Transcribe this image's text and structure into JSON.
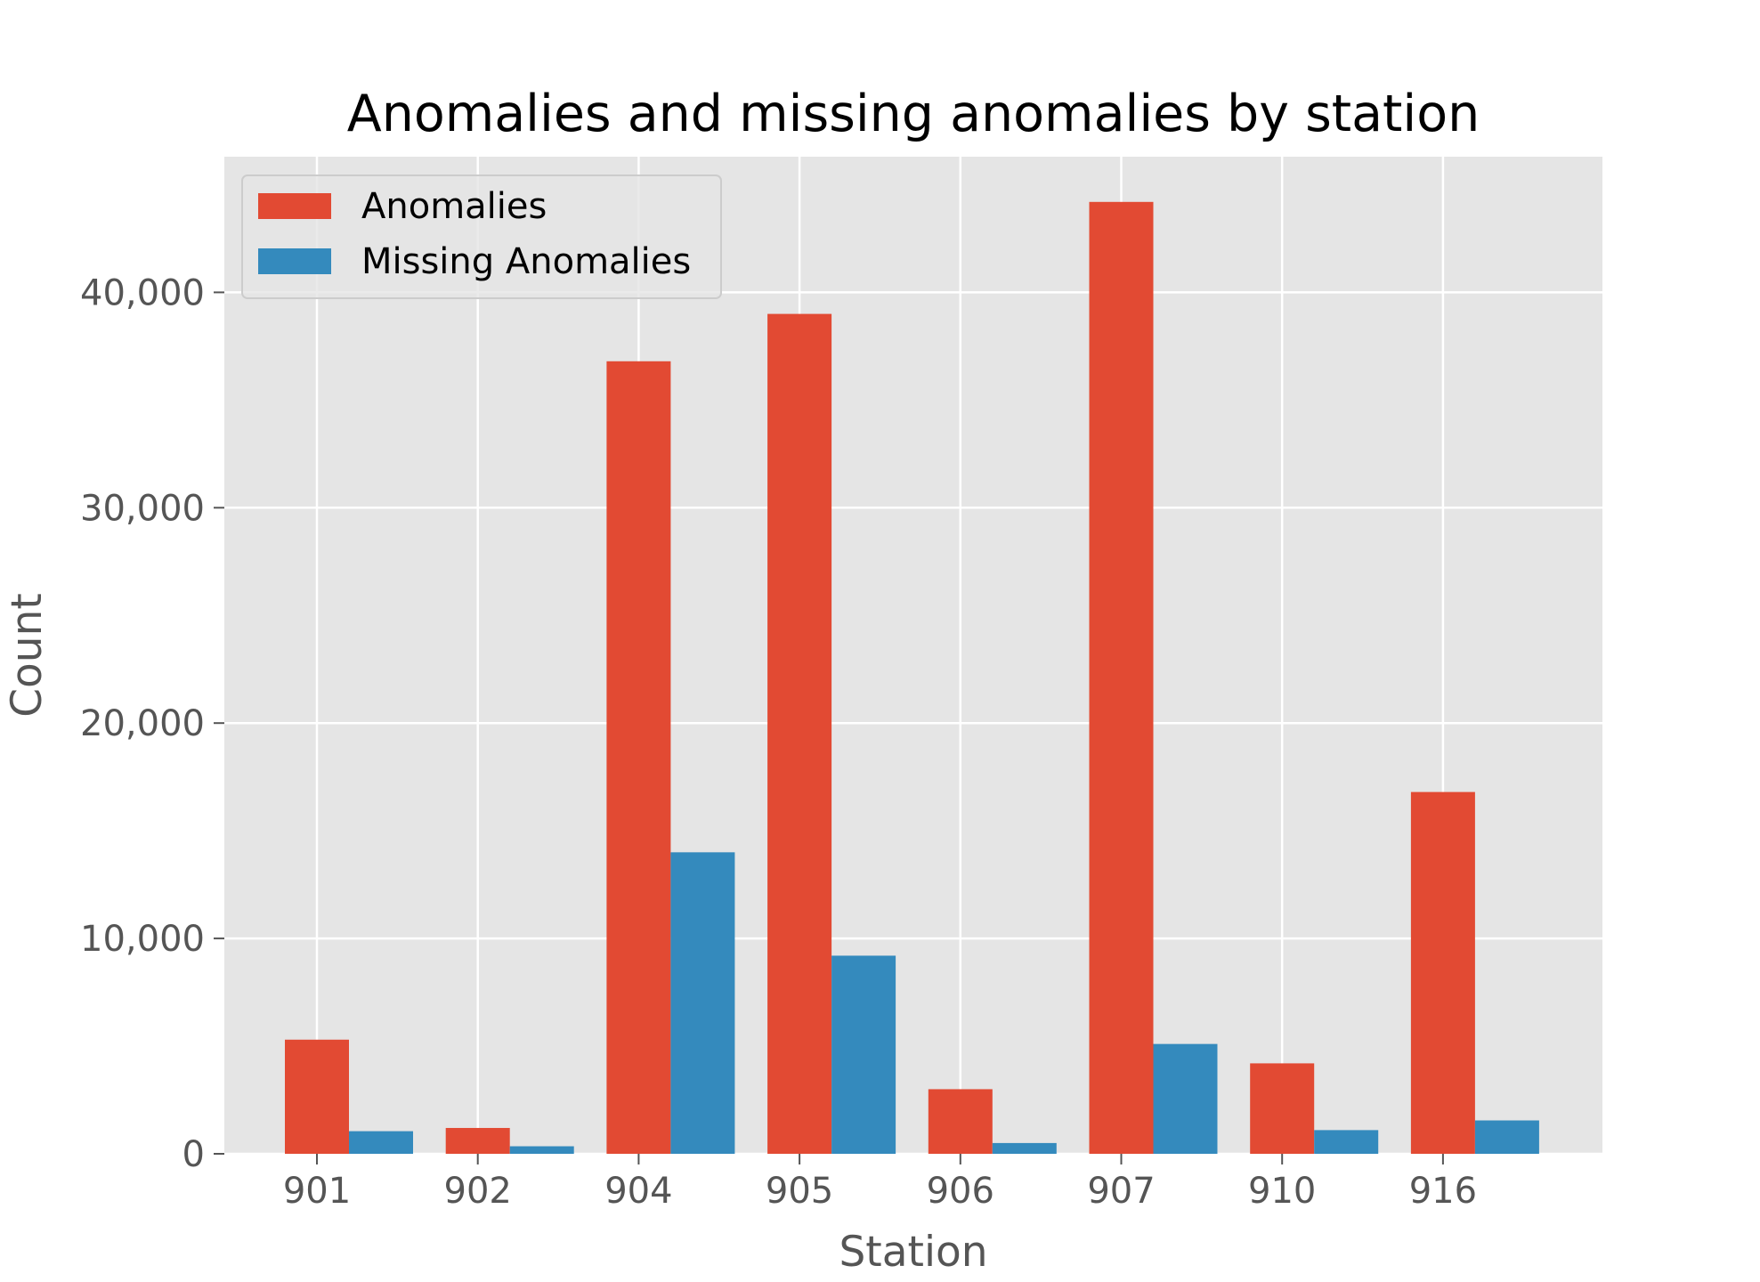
{
  "chart_data": {
    "type": "bar",
    "title": "Anomalies and missing anomalies by station",
    "xlabel": "Station",
    "ylabel": "Count",
    "categories": [
      "901",
      "902",
      "904",
      "905",
      "906",
      "907",
      "910",
      "916"
    ],
    "series": [
      {
        "name": "Anomalies",
        "color": "#E24A33",
        "values": [
          5300,
          1200,
          36800,
          39000,
          3000,
          44200,
          4200,
          16800
        ]
      },
      {
        "name": "Missing Anomalies",
        "color": "#348ABD",
        "values": [
          1050,
          350,
          14000,
          9200,
          500,
          5100,
          1100,
          1550
        ]
      }
    ],
    "ylim": [
      0,
      46300
    ],
    "yticks": [
      0,
      10000,
      20000,
      30000,
      40000
    ],
    "ytick_labels": [
      "0",
      "10,000",
      "20,000",
      "30,000",
      "40,000"
    ],
    "grid": true,
    "legend_position": "top-left",
    "background_color": "#E5E5E5"
  }
}
